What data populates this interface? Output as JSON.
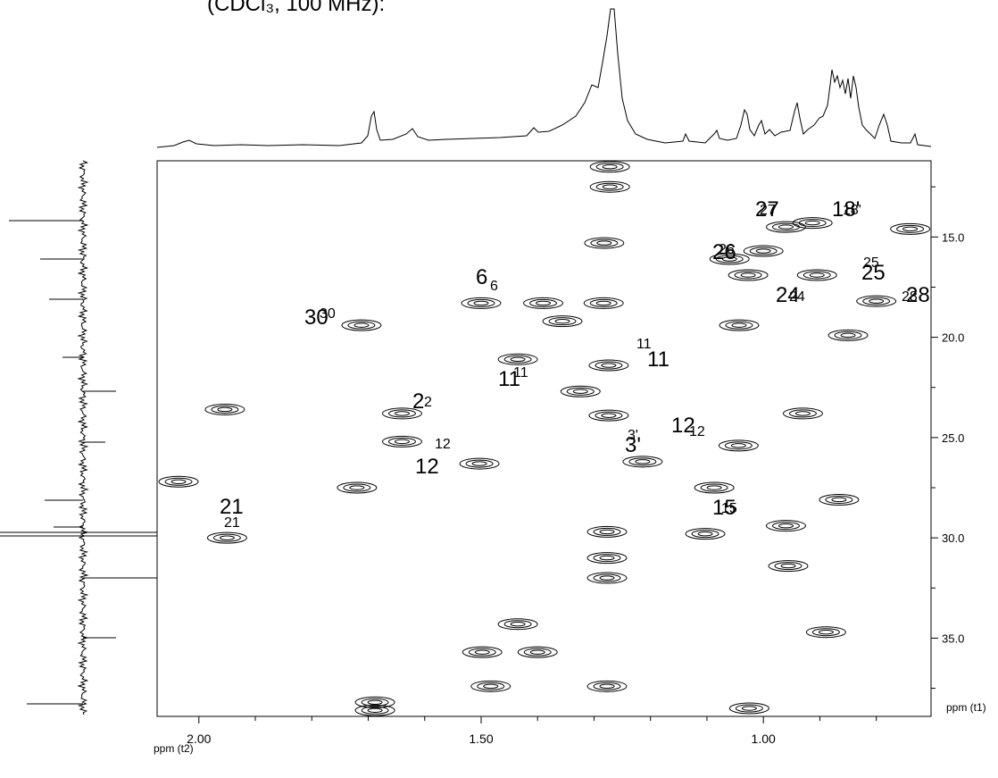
{
  "chart_data": {
    "type": "contour",
    "title": "(CDCl₃, 100 MHz):",
    "x_label": "ppm (t2)",
    "y_label": "ppm (t1)",
    "xlim": [
      2.074,
      0.703
    ],
    "ylim": [
      11.2,
      38.9
    ],
    "xticks": [
      {
        "value": 2,
        "label": "2.00"
      },
      {
        "value": 1.5,
        "label": "1.50"
      },
      {
        "value": 1,
        "label": "1.00"
      }
    ],
    "xminor_ticks": [
      1.9,
      1.8,
      1.7,
      1.6,
      1.4,
      1.3,
      1.2,
      1.1,
      0.9,
      0.8
    ],
    "yticks": [
      {
        "value": 15,
        "label": "15.0"
      },
      {
        "value": 20,
        "label": "20.0"
      },
      {
        "value": 25,
        "label": "25.0"
      },
      {
        "value": 30,
        "label": "30.0"
      },
      {
        "value": 35,
        "label": "35.0"
      }
    ],
    "yminor_ticks": [
      12.5,
      17.5,
      22.5,
      27.5,
      32.5,
      37.5
    ],
    "color": "#000000",
    "peaks": [
      {
        "x": 1.272,
        "y": 11.5
      },
      {
        "x": 1.272,
        "y": 12.5
      },
      {
        "x": 0.913,
        "y": 14.3
      },
      {
        "x": 0.96,
        "y": 14.5
      },
      {
        "x": 0.74,
        "y": 14.6
      },
      {
        "x": 1.282,
        "y": 15.3
      },
      {
        "x": 1.06,
        "y": 16.1
      },
      {
        "x": 1.0,
        "y": 15.7
      },
      {
        "x": 0.905,
        "y": 16.9
      },
      {
        "x": 1.027,
        "y": 16.9
      },
      {
        "x": 0.8,
        "y": 18.2
      },
      {
        "x": 1.5,
        "y": 18.3
      },
      {
        "x": 1.39,
        "y": 18.3
      },
      {
        "x": 1.283,
        "y": 18.3
      },
      {
        "x": 1.712,
        "y": 19.4
      },
      {
        "x": 1.356,
        "y": 19.2
      },
      {
        "x": 1.043,
        "y": 19.4
      },
      {
        "x": 0.85,
        "y": 19.9
      },
      {
        "x": 1.435,
        "y": 21.1
      },
      {
        "x": 1.274,
        "y": 21.4
      },
      {
        "x": 1.324,
        "y": 22.7
      },
      {
        "x": 1.954,
        "y": 23.6
      },
      {
        "x": 1.64,
        "y": 23.8
      },
      {
        "x": 1.274,
        "y": 23.9
      },
      {
        "x": 0.93,
        "y": 23.8
      },
      {
        "x": 1.64,
        "y": 25.2
      },
      {
        "x": 1.044,
        "y": 25.4
      },
      {
        "x": 1.503,
        "y": 26.3
      },
      {
        "x": 1.214,
        "y": 26.2
      },
      {
        "x": 2.036,
        "y": 27.2
      },
      {
        "x": 1.72,
        "y": 27.5
      },
      {
        "x": 1.087,
        "y": 27.5
      },
      {
        "x": 0.866,
        "y": 28.1
      },
      {
        "x": 1.95,
        "y": 30.0
      },
      {
        "x": 1.277,
        "y": 29.7
      },
      {
        "x": 1.103,
        "y": 29.8
      },
      {
        "x": 0.96,
        "y": 29.4
      },
      {
        "x": 1.277,
        "y": 31.0
      },
      {
        "x": 0.956,
        "y": 31.4
      },
      {
        "x": 1.277,
        "y": 32.0
      },
      {
        "x": 1.435,
        "y": 34.3
      },
      {
        "x": 0.889,
        "y": 34.7
      },
      {
        "x": 1.498,
        "y": 35.7
      },
      {
        "x": 1.4,
        "y": 35.7
      },
      {
        "x": 1.277,
        "y": 37.4
      },
      {
        "x": 1.483,
        "y": 37.4
      },
      {
        "x": 1.688,
        "y": 38.2
      },
      {
        "x": 1.688,
        "y": 38.6
      },
      {
        "x": 1.025,
        "y": 38.5
      }
    ],
    "annotations": [
      "27",
      "27",
      "18'",
      "18'",
      "26",
      "26",
      "25",
      "25",
      "6",
      "6",
      "24",
      "24",
      "28",
      "28",
      "30",
      "30",
      "11",
      "11",
      "11",
      "11",
      "2",
      "2",
      "12",
      "12",
      "3'",
      "3'",
      "12",
      "12",
      "15",
      "15",
      "21",
      "21"
    ]
  }
}
